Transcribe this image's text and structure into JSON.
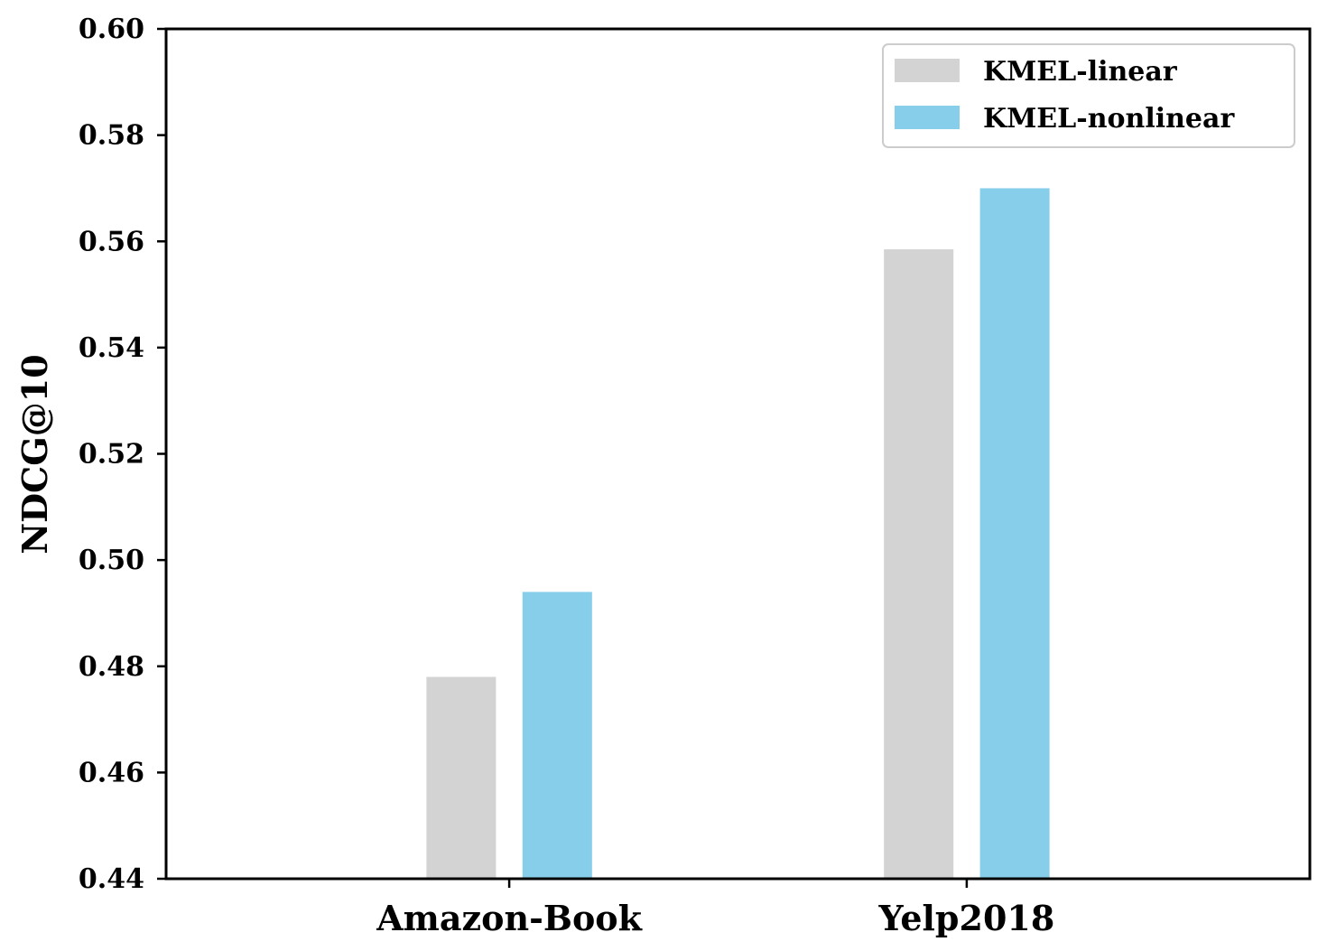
{
  "chart_data": {
    "type": "bar",
    "categories": [
      "Amazon-Book",
      "Yelp2018"
    ],
    "series": [
      {
        "name": "KMEL-linear",
        "values": [
          0.478,
          0.5585
        ],
        "color": "#d3d3d3"
      },
      {
        "name": "KMEL-nonlinear",
        "values": [
          0.494,
          0.57
        ],
        "color": "#87ceeb"
      }
    ],
    "xlabel": "",
    "ylabel": "NDCG@10",
    "ylim": [
      0.44,
      0.6
    ],
    "yticks": [
      "0.44",
      "0.46",
      "0.48",
      "0.50",
      "0.52",
      "0.54",
      "0.56",
      "0.58",
      "0.60"
    ],
    "grid": false,
    "legend": "top-right"
  }
}
